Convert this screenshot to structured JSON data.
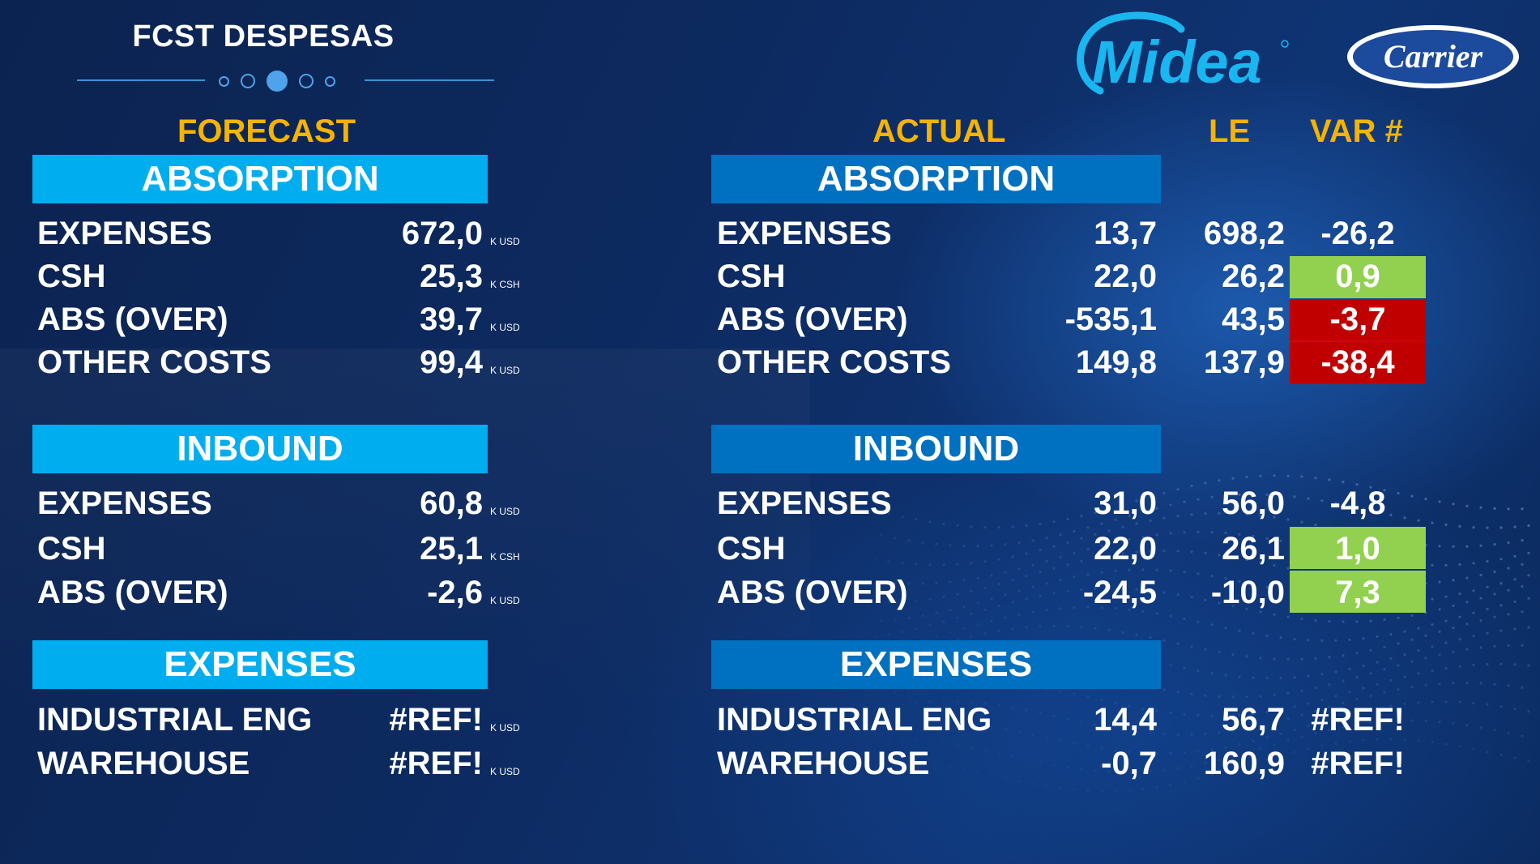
{
  "title": "FCST DESPESAS",
  "logos": {
    "midea": "Midea",
    "carrier": "Carrier"
  },
  "colors": {
    "light_band": "#00aeef",
    "dark_band": "#0070c0",
    "header": "#f6b300",
    "good": "#92d050",
    "bad": "#c00000"
  },
  "forecast": {
    "header": "FORECAST",
    "sections": [
      {
        "title": "ABSORPTION",
        "rows": [
          {
            "label": "EXPENSES",
            "value": "672,0",
            "unit": "K USD"
          },
          {
            "label": "CSH",
            "value": "25,3",
            "unit": "K CSH"
          },
          {
            "label": "ABS (OVER)",
            "value": "39,7",
            "unit": "K USD"
          },
          {
            "label": "OTHER COSTS",
            "value": "99,4",
            "unit": "K USD"
          }
        ]
      },
      {
        "title": "INBOUND",
        "rows": [
          {
            "label": "EXPENSES",
            "value": "60,8",
            "unit": "K USD"
          },
          {
            "label": "CSH",
            "value": "25,1",
            "unit": "K CSH"
          },
          {
            "label": "ABS (OVER)",
            "value": "-2,6",
            "unit": "K USD"
          }
        ]
      },
      {
        "title": "EXPENSES",
        "rows": [
          {
            "label": "INDUSTRIAL ENG",
            "value": "#REF!",
            "unit": "K USD"
          },
          {
            "label": "WAREHOUSE",
            "value": "#REF!",
            "unit": "K USD"
          }
        ]
      }
    ]
  },
  "actual": {
    "header": "ACTUAL",
    "le_header": "LE",
    "var_header": "VAR #",
    "sections": [
      {
        "title": "ABSORPTION",
        "rows": [
          {
            "label": "EXPENSES",
            "actual": "13,7",
            "le": "698,2",
            "var": "-26,2",
            "status": "none"
          },
          {
            "label": "CSH",
            "actual": "22,0",
            "le": "26,2",
            "var": "0,9",
            "status": "good"
          },
          {
            "label": "ABS (OVER)",
            "actual": "-535,1",
            "le": "43,5",
            "var": "-3,7",
            "status": "bad"
          },
          {
            "label": "OTHER COSTS",
            "actual": "149,8",
            "le": "137,9",
            "var": "-38,4",
            "status": "bad"
          }
        ]
      },
      {
        "title": "INBOUND",
        "rows": [
          {
            "label": "EXPENSES",
            "actual": "31,0",
            "le": "56,0",
            "var": "-4,8",
            "status": "none"
          },
          {
            "label": "CSH",
            "actual": "22,0",
            "le": "26,1",
            "var": "1,0",
            "status": "good"
          },
          {
            "label": "ABS (OVER)",
            "actual": "-24,5",
            "le": "-10,0",
            "var": "7,3",
            "status": "good"
          }
        ]
      },
      {
        "title": "EXPENSES",
        "rows": [
          {
            "label": "INDUSTRIAL ENG",
            "actual": "14,4",
            "le": "56,7",
            "var": "#REF!",
            "status": "none"
          },
          {
            "label": "WAREHOUSE",
            "actual": "-0,7",
            "le": "160,9",
            "var": "#REF!",
            "status": "none"
          }
        ]
      }
    ]
  }
}
